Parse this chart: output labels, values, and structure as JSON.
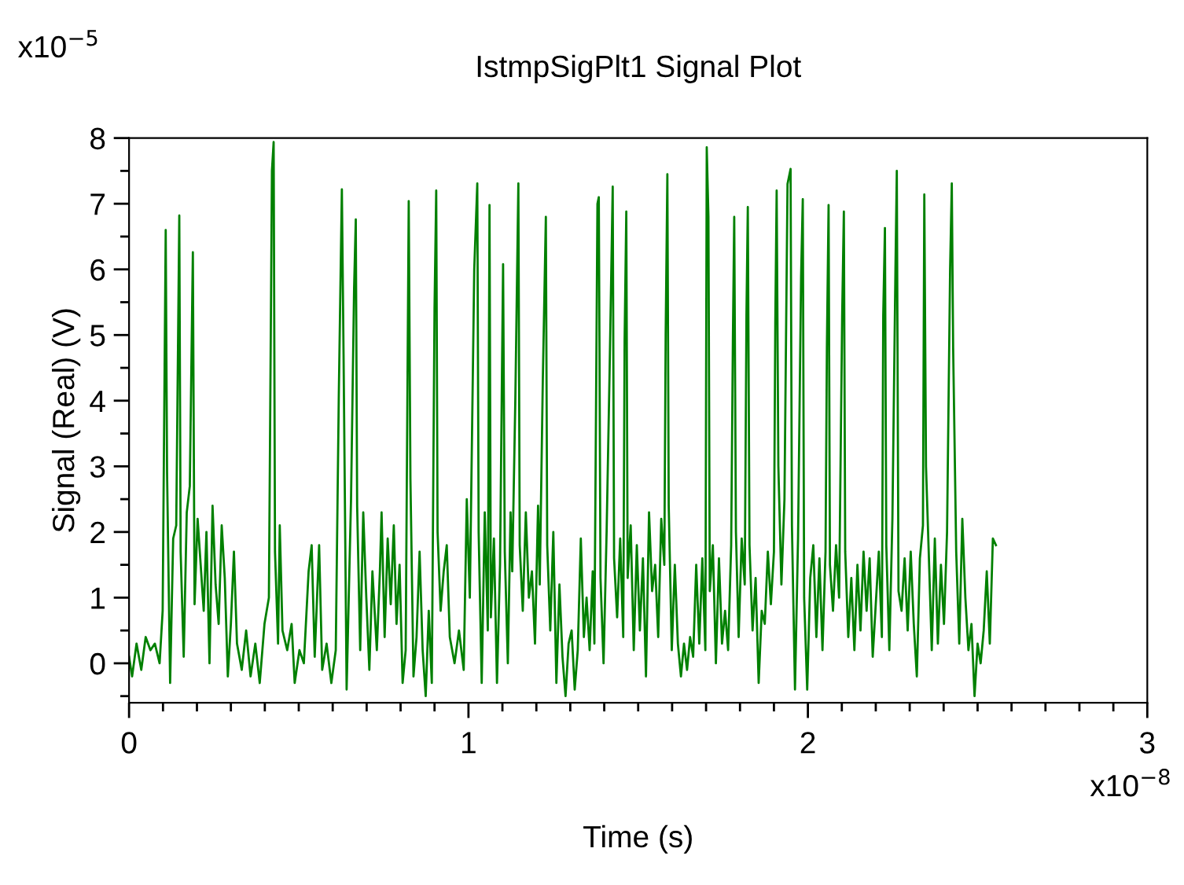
{
  "chart_data": {
    "type": "line",
    "title": "IstmpSigPlt1 Signal Plot",
    "xlabel": "Time (s)",
    "ylabel": "Signal (Real) (V)",
    "annotations": [
      "x10$^{−5}$",
      "x10$^{−8}$"
    ],
    "xlim": [
      0,
      3
    ],
    "ylim": [
      -0.6,
      8
    ],
    "xticks": [
      0,
      {
        "value": 0.1,
        "label": null
      },
      {
        "value": 0.2,
        "label": null
      },
      {
        "value": 0.3,
        "label": null
      },
      {
        "value": 0.4,
        "label": null
      },
      {
        "value": 0.5,
        "label": null
      },
      {
        "value": 0.6,
        "label": null
      },
      {
        "value": 0.7,
        "label": null
      },
      {
        "value": 0.8,
        "label": null
      },
      {
        "value": 0.9,
        "label": null
      },
      1,
      {
        "value": 1.1,
        "label": null
      },
      {
        "value": 1.2,
        "label": null
      },
      {
        "value": 1.3,
        "label": null
      },
      {
        "value": 1.4,
        "label": null
      },
      {
        "value": 1.5,
        "label": null
      },
      {
        "value": 1.6,
        "label": null
      },
      {
        "value": 1.7,
        "label": null
      },
      {
        "value": 1.8,
        "label": null
      },
      {
        "value": 1.9,
        "label": null
      },
      2,
      {
        "value": 2.1,
        "label": null
      },
      {
        "value": 2.2,
        "label": null
      },
      {
        "value": 2.3,
        "label": null
      },
      {
        "value": 2.4,
        "label": null
      },
      {
        "value": 2.5,
        "label": null
      },
      {
        "value": 2.6,
        "label": null
      },
      {
        "value": 2.7,
        "label": null
      },
      {
        "value": 2.8,
        "label": null
      },
      {
        "value": 2.9,
        "label": null
      },
      3
    ],
    "yticks": [
      {
        "value": -0.5,
        "label": null
      },
      0,
      {
        "value": 0.5,
        "label": null
      },
      1,
      {
        "value": 1.5,
        "label": null
      },
      2,
      {
        "value": 2.5,
        "label": null
      },
      3,
      {
        "value": 3.5,
        "label": null
      },
      4,
      {
        "value": 4.5,
        "label": null
      },
      5,
      {
        "value": 5.5,
        "label": null
      },
      6,
      {
        "value": 6.5,
        "label": null
      },
      7,
      {
        "value": 7.5,
        "label": null
      },
      8
    ],
    "marker": "none",
    "line_style": "solid",
    "series": [
      {
        "color": "#008000",
        "x": [
          0,
          0.009,
          0.022,
          0.036,
          0.049,
          0.063,
          0.076,
          0.09,
          0.099,
          0.108,
          0.112,
          0.121,
          0.13,
          0.139,
          0.148,
          0.152,
          0.161,
          0.17,
          0.179,
          0.188,
          0.193,
          0.202,
          0.211,
          0.22,
          0.228,
          0.237,
          0.246,
          0.255,
          0.264,
          0.273,
          0.282,
          0.291,
          0.3,
          0.309,
          0.318,
          0.332,
          0.345,
          0.358,
          0.372,
          0.385,
          0.399,
          0.412,
          0.421,
          0.426,
          0.43,
          0.439,
          0.444,
          0.452,
          0.466,
          0.479,
          0.488,
          0.502,
          0.515,
          0.529,
          0.538,
          0.547,
          0.56,
          0.569,
          0.582,
          0.596,
          0.609,
          0.618,
          0.627,
          0.632,
          0.641,
          0.654,
          0.663,
          0.668,
          0.672,
          0.681,
          0.69,
          0.699,
          0.708,
          0.717,
          0.73,
          0.739,
          0.744,
          0.753,
          0.762,
          0.771,
          0.78,
          0.788,
          0.797,
          0.806,
          0.815,
          0.824,
          0.829,
          0.838,
          0.847,
          0.856,
          0.865,
          0.874,
          0.883,
          0.892,
          0.9,
          0.905,
          0.909,
          0.918,
          0.927,
          0.936,
          0.945,
          0.959,
          0.972,
          0.986,
          0.995,
          1.004,
          1.017,
          1.026,
          1.03,
          1.039,
          1.048,
          1.057,
          1.062,
          1.066,
          1.075,
          1.084,
          1.093,
          1.102,
          1.107,
          1.116,
          1.124,
          1.129,
          1.138,
          1.147,
          1.151,
          1.16,
          1.169,
          1.178,
          1.187,
          1.196,
          1.205,
          1.21,
          1.219,
          1.228,
          1.232,
          1.241,
          1.25,
          1.259,
          1.268,
          1.277,
          1.286,
          1.295,
          1.304,
          1.313,
          1.322,
          1.331,
          1.34,
          1.348,
          1.357,
          1.366,
          1.371,
          1.38,
          1.384,
          1.389,
          1.398,
          1.407,
          1.416,
          1.425,
          1.429,
          1.438,
          1.447,
          1.456,
          1.46,
          1.465,
          1.469,
          1.478,
          1.487,
          1.496,
          1.505,
          1.514,
          1.523,
          1.532,
          1.541,
          1.55,
          1.559,
          1.568,
          1.577,
          1.581,
          1.586,
          1.59,
          1.599,
          1.608,
          1.617,
          1.626,
          1.635,
          1.644,
          1.653,
          1.662,
          1.671,
          1.68,
          1.689,
          1.698,
          1.702,
          1.707,
          1.711,
          1.72,
          1.729,
          1.738,
          1.747,
          1.756,
          1.765,
          1.774,
          1.779,
          1.783,
          1.788,
          1.796,
          1.805,
          1.814,
          1.819,
          1.823,
          1.828,
          1.837,
          1.846,
          1.855,
          1.864,
          1.873,
          1.882,
          1.891,
          1.9,
          1.904,
          1.908,
          1.913,
          1.922,
          1.931,
          1.94,
          1.949,
          1.953,
          1.962,
          1.971,
          1.98,
          1.985,
          1.989,
          1.998,
          2.007,
          2.016,
          2.025,
          2.034,
          2.043,
          2.052,
          2.056,
          2.061,
          2.065,
          2.074,
          2.083,
          2.092,
          2.101,
          2.106,
          2.11,
          2.119,
          2.128,
          2.137,
          2.146,
          2.155,
          2.164,
          2.173,
          2.182,
          2.191,
          2.2,
          2.209,
          2.218,
          2.222,
          2.227,
          2.231,
          2.24,
          2.249,
          2.258,
          2.262,
          2.267,
          2.276,
          2.285,
          2.294,
          2.303,
          2.312,
          2.321,
          2.33,
          2.339,
          2.343,
          2.348,
          2.356,
          2.365,
          2.374,
          2.383,
          2.392,
          2.401,
          2.41,
          2.419,
          2.424,
          2.428,
          2.437,
          2.446,
          2.455,
          2.464,
          2.473,
          2.482,
          2.491,
          2.5,
          2.509,
          2.518,
          2.527,
          2.536,
          2.545,
          2.554
        ],
        "values": [
          0.1,
          -0.2,
          0.3,
          -0.1,
          0.4,
          0.2,
          0.3,
          0.0,
          0.8,
          6.6,
          2.9,
          -0.3,
          1.9,
          2.1,
          6.82,
          1.7,
          0.1,
          2.3,
          2.7,
          6.26,
          0.9,
          2.2,
          1.5,
          0.8,
          2.0,
          0.0,
          2.4,
          1.2,
          0.6,
          2.1,
          1.3,
          -0.2,
          0.6,
          1.7,
          0.3,
          -0.1,
          0.5,
          -0.2,
          0.3,
          -0.3,
          0.6,
          1.0,
          7.5,
          7.94,
          1.7,
          0.3,
          2.1,
          0.5,
          0.2,
          0.6,
          -0.3,
          0.2,
          0.0,
          1.4,
          1.8,
          0.1,
          1.8,
          -0.1,
          0.3,
          -0.3,
          0.2,
          4.1,
          7.22,
          4.7,
          -0.4,
          2.5,
          5.7,
          6.76,
          2.4,
          0.2,
          2.3,
          1.0,
          -0.1,
          1.4,
          0.2,
          1.4,
          2.3,
          0.4,
          1.9,
          0.9,
          2.1,
          0.6,
          1.5,
          -0.3,
          0.2,
          7.04,
          2.8,
          -0.2,
          0.4,
          1.7,
          0.2,
          -0.5,
          0.8,
          -0.3,
          5.4,
          7.2,
          2.0,
          0.8,
          1.4,
          1.8,
          0.4,
          0.0,
          0.5,
          -0.1,
          2.5,
          1.0,
          6.0,
          7.31,
          2.0,
          -0.3,
          2.3,
          0.5,
          6.98,
          0.7,
          1.9,
          -0.3,
          1.5,
          6.08,
          1.7,
          0.0,
          2.3,
          1.4,
          4.0,
          7.31,
          1.8,
          0.8,
          2.3,
          1.0,
          1.4,
          0.3,
          2.4,
          1.2,
          4.3,
          6.8,
          1.8,
          0.5,
          2.0,
          -0.3,
          1.2,
          0.1,
          -0.5,
          0.3,
          0.5,
          -0.4,
          0.2,
          1.9,
          0.4,
          1.0,
          0.2,
          1.4,
          0.3,
          7.0,
          7.1,
          1.3,
          0.0,
          2.0,
          4.5,
          7.26,
          1.6,
          0.7,
          1.9,
          0.4,
          4.9,
          6.88,
          1.3,
          2.1,
          0.2,
          1.8,
          0.5,
          1.6,
          -0.2,
          2.3,
          1.1,
          1.5,
          0.4,
          2.2,
          1.5,
          5.0,
          7.45,
          2.4,
          0.2,
          1.5,
          0.3,
          -0.2,
          0.3,
          -0.1,
          0.4,
          0.1,
          1.5,
          0.3,
          1.6,
          0.2,
          7.86,
          6.8,
          1.1,
          1.8,
          0.0,
          1.6,
          0.3,
          0.8,
          0.2,
          1.8,
          4.9,
          6.8,
          2.0,
          0.4,
          1.9,
          1.2,
          5.3,
          6.95,
          1.8,
          0.5,
          1.3,
          -0.3,
          0.8,
          0.6,
          1.7,
          0.9,
          1.7,
          5.2,
          7.2,
          3.0,
          1.2,
          2.5,
          7.3,
          7.53,
          2.1,
          -0.4,
          1.9,
          5.9,
          7.07,
          1.0,
          -0.4,
          1.3,
          1.8,
          0.4,
          1.6,
          0.2,
          1.7,
          4.8,
          6.98,
          1.5,
          0.8,
          1.8,
          1.0,
          5.3,
          6.88,
          1.7,
          0.4,
          1.3,
          0.2,
          1.5,
          0.5,
          1.7,
          0.8,
          1.6,
          0.1,
          0.9,
          1.7,
          0.4,
          5.3,
          6.63,
          1.8,
          0.2,
          2.2,
          6.0,
          7.5,
          1.1,
          0.8,
          1.6,
          0.5,
          1.7,
          0.6,
          -0.2,
          1.6,
          2.1,
          7.14,
          3.0,
          1.7,
          0.2,
          1.9,
          0.3,
          1.5,
          0.6,
          2.0,
          6.0,
          7.31,
          4.8,
          1.7,
          0.3,
          2.2,
          1.0,
          0.2,
          0.6,
          -0.5,
          0.3,
          0.0,
          0.5,
          1.4,
          0.3,
          1.9,
          1.8
        ]
      }
    ]
  }
}
